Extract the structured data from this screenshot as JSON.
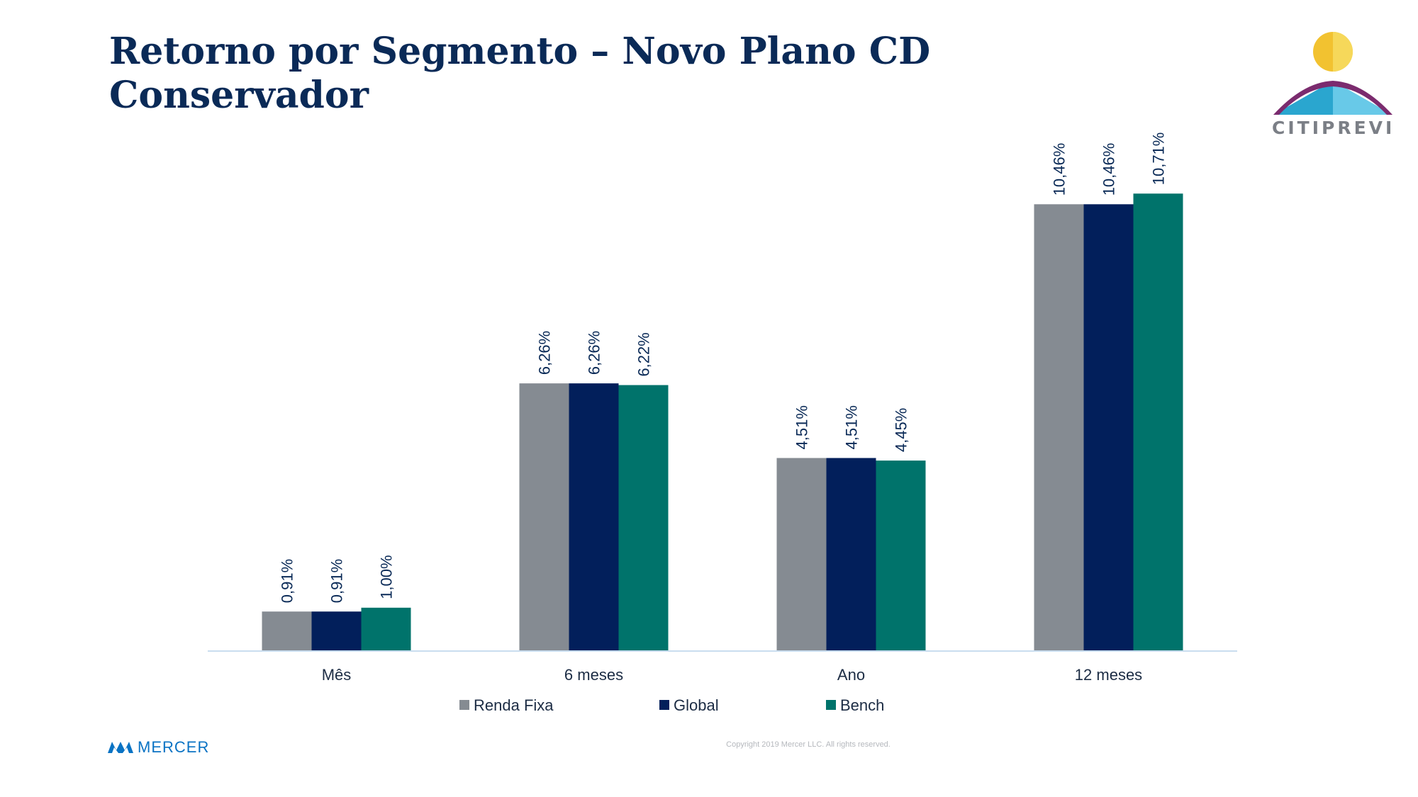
{
  "title": "Retorno por Segmento – Novo Plano CD Conservador",
  "logo": {
    "text": "CITIPREVI"
  },
  "footer": {
    "brand": "MERCER",
    "copyright": "Copyright 2019 Mercer LLC. All rights reserved."
  },
  "chart_data": {
    "type": "bar",
    "categories": [
      "Mês",
      "6 meses",
      "Ano",
      "12 meses"
    ],
    "series": [
      {
        "name": "Renda Fixa",
        "values": [
          0.91,
          6.26,
          4.51,
          10.46
        ],
        "labels": [
          "0,91%",
          "6,26%",
          "4,51%",
          "10,46%"
        ],
        "color": "#858b92"
      },
      {
        "name": "Global",
        "values": [
          0.91,
          6.26,
          4.51,
          10.46
        ],
        "labels": [
          "0,91%",
          "6,26%",
          "4,51%",
          "10,46%"
        ],
        "color": "#021f5b"
      },
      {
        "name": "Bench",
        "values": [
          1.0,
          6.22,
          4.45,
          10.71
        ],
        "labels": [
          "1,00%",
          "6,22%",
          "4,45%",
          "10,71%"
        ],
        "color": "#00736b"
      }
    ],
    "ylim": [
      0,
      11
    ],
    "grid": false,
    "legend": "bottom"
  }
}
